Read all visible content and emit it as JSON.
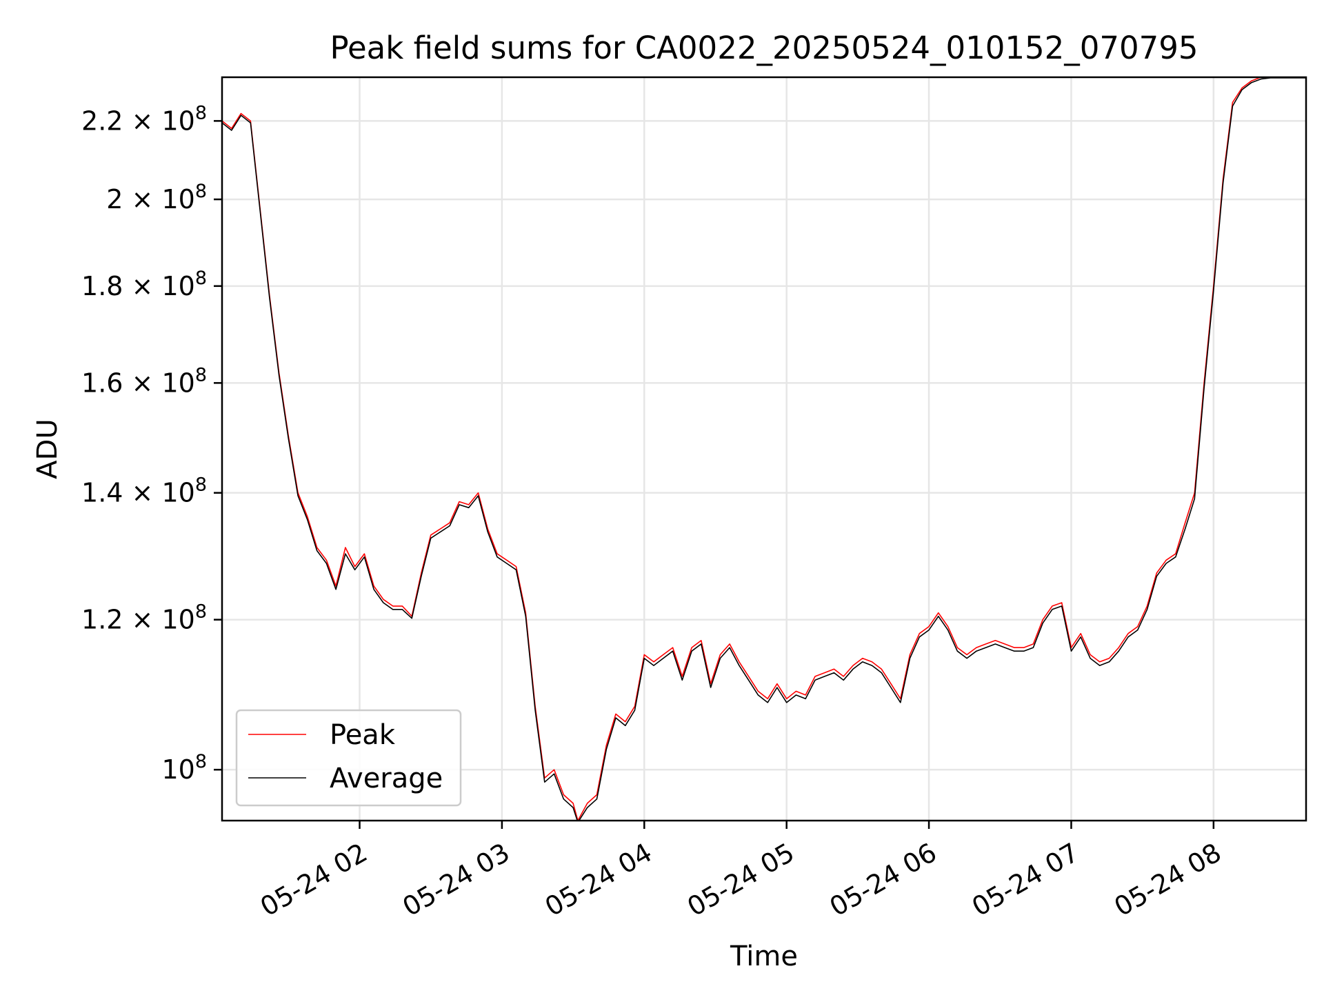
{
  "chart_data": {
    "type": "line",
    "title": "Peak field sums for CA0022_20250524_010152_070795",
    "xlabel": "Time",
    "ylabel": "ADU",
    "y_scale": "log",
    "grid": true,
    "legend_position": "lower-left",
    "xlim": [
      "2025-05-24 01:02",
      "2025-05-24 08:39"
    ],
    "ylim": [
      94000000,
      232000000
    ],
    "x_ticks": [
      {
        "value": "2025-05-24 02:00",
        "label": "05-24 02"
      },
      {
        "value": "2025-05-24 03:00",
        "label": "05-24 03"
      },
      {
        "value": "2025-05-24 04:00",
        "label": "05-24 04"
      },
      {
        "value": "2025-05-24 05:00",
        "label": "05-24 05"
      },
      {
        "value": "2025-05-24 06:00",
        "label": "05-24 06"
      },
      {
        "value": "2025-05-24 07:00",
        "label": "05-24 07"
      },
      {
        "value": "2025-05-24 08:00",
        "label": "05-24 08"
      }
    ],
    "y_ticks": [
      {
        "value": 100000000,
        "mantissa": "",
        "exponent": "8"
      },
      {
        "value": 120000000,
        "mantissa": "1.2",
        "exponent": "8"
      },
      {
        "value": 140000000,
        "mantissa": "1.4",
        "exponent": "8"
      },
      {
        "value": 160000000,
        "mantissa": "1.6",
        "exponent": "8"
      },
      {
        "value": 180000000,
        "mantissa": "1.8",
        "exponent": "8"
      },
      {
        "value": 200000000,
        "mantissa": "2",
        "exponent": "8"
      },
      {
        "value": 220000000,
        "mantissa": "2.2",
        "exponent": "8"
      }
    ],
    "series": [
      {
        "name": "Peak",
        "color": "#ff0000",
        "x": [
          "2025-05-24 01:02",
          "2025-05-24 01:06",
          "2025-05-24 01:10",
          "2025-05-24 01:14",
          "2025-05-24 01:18",
          "2025-05-24 01:22",
          "2025-05-24 01:26",
          "2025-05-24 01:30",
          "2025-05-24 01:34",
          "2025-05-24 01:38",
          "2025-05-24 01:42",
          "2025-05-24 01:46",
          "2025-05-24 01:50",
          "2025-05-24 01:54",
          "2025-05-24 01:58",
          "2025-05-24 02:02",
          "2025-05-24 02:06",
          "2025-05-24 02:10",
          "2025-05-24 02:14",
          "2025-05-24 02:18",
          "2025-05-24 02:22",
          "2025-05-24 02:26",
          "2025-05-24 02:30",
          "2025-05-24 02:34",
          "2025-05-24 02:38",
          "2025-05-24 02:42",
          "2025-05-24 02:46",
          "2025-05-24 02:50",
          "2025-05-24 02:54",
          "2025-05-24 02:58",
          "2025-05-24 03:02",
          "2025-05-24 03:06",
          "2025-05-24 03:10",
          "2025-05-24 03:14",
          "2025-05-24 03:18",
          "2025-05-24 03:22",
          "2025-05-24 03:26",
          "2025-05-24 03:30",
          "2025-05-24 03:32",
          "2025-05-24 03:36",
          "2025-05-24 03:40",
          "2025-05-24 03:44",
          "2025-05-24 03:48",
          "2025-05-24 03:52",
          "2025-05-24 03:56",
          "2025-05-24 04:00",
          "2025-05-24 04:04",
          "2025-05-24 04:08",
          "2025-05-24 04:12",
          "2025-05-24 04:16",
          "2025-05-24 04:20",
          "2025-05-24 04:24",
          "2025-05-24 04:28",
          "2025-05-24 04:32",
          "2025-05-24 04:36",
          "2025-05-24 04:40",
          "2025-05-24 04:44",
          "2025-05-24 04:48",
          "2025-05-24 04:52",
          "2025-05-24 04:56",
          "2025-05-24 05:00",
          "2025-05-24 05:04",
          "2025-05-24 05:08",
          "2025-05-24 05:12",
          "2025-05-24 05:16",
          "2025-05-24 05:20",
          "2025-05-24 05:24",
          "2025-05-24 05:28",
          "2025-05-24 05:32",
          "2025-05-24 05:36",
          "2025-05-24 05:40",
          "2025-05-24 05:44",
          "2025-05-24 05:48",
          "2025-05-24 05:52",
          "2025-05-24 05:56",
          "2025-05-24 06:00",
          "2025-05-24 06:04",
          "2025-05-24 06:08",
          "2025-05-24 06:12",
          "2025-05-24 06:16",
          "2025-05-24 06:20",
          "2025-05-24 06:24",
          "2025-05-24 06:28",
          "2025-05-24 06:32",
          "2025-05-24 06:36",
          "2025-05-24 06:40",
          "2025-05-24 06:44",
          "2025-05-24 06:48",
          "2025-05-24 06:52",
          "2025-05-24 06:56",
          "2025-05-24 07:00",
          "2025-05-24 07:04",
          "2025-05-24 07:08",
          "2025-05-24 07:12",
          "2025-05-24 07:16",
          "2025-05-24 07:20",
          "2025-05-24 07:24",
          "2025-05-24 07:28",
          "2025-05-24 07:32",
          "2025-05-24 07:36",
          "2025-05-24 07:40",
          "2025-05-24 07:44",
          "2025-05-24 07:48",
          "2025-05-24 07:52",
          "2025-05-24 07:56",
          "2025-05-24 08:00",
          "2025-05-24 08:04",
          "2025-05-24 08:08",
          "2025-05-24 08:12",
          "2025-05-24 08:16",
          "2025-05-24 08:20",
          "2025-05-24 08:24",
          "2025-05-24 08:28",
          "2025-05-24 08:32",
          "2025-05-24 08:36",
          "2025-05-24 08:39"
        ],
        "values": [
          220000000,
          218000000,
          222000000,
          220000000,
          198000000,
          178000000,
          162000000,
          150000000,
          140000000,
          136000000,
          131000000,
          129000000,
          125000000,
          131000000,
          128000000,
          130000000,
          125000000,
          123000000,
          122000000,
          122000000,
          120500000,
          127000000,
          133000000,
          134000000,
          135000000,
          138500000,
          138000000,
          140000000,
          134000000,
          130000000,
          129000000,
          128000000,
          121000000,
          108000000,
          99000000,
          100000000,
          97000000,
          96000000,
          94000000,
          96000000,
          97000000,
          103000000,
          107000000,
          106000000,
          108000000,
          115000000,
          114000000,
          115000000,
          116000000,
          112000000,
          116000000,
          117000000,
          111000000,
          115000000,
          116500000,
          114000000,
          112000000,
          110000000,
          109000000,
          111000000,
          109000000,
          110000000,
          109500000,
          112000000,
          112500000,
          113000000,
          112000000,
          113500000,
          114500000,
          114000000,
          113000000,
          111000000,
          109000000,
          115000000,
          118000000,
          119000000,
          121000000,
          119000000,
          116000000,
          115000000,
          116000000,
          116500000,
          117000000,
          116500000,
          116000000,
          116000000,
          116500000,
          120000000,
          122000000,
          122500000,
          116000000,
          118000000,
          115000000,
          114000000,
          114500000,
          116000000,
          118000000,
          119000000,
          122000000,
          127000000,
          129000000,
          130000000,
          135000000,
          140000000,
          160000000,
          180000000,
          205000000,
          225000000,
          229000000,
          231000000,
          232000000,
          232000000,
          232000000,
          232000000,
          232000000,
          232000000
        ]
      },
      {
        "name": "Average",
        "color": "#000000",
        "x": [
          "2025-05-24 01:02",
          "2025-05-24 01:06",
          "2025-05-24 01:10",
          "2025-05-24 01:14",
          "2025-05-24 01:18",
          "2025-05-24 01:22",
          "2025-05-24 01:26",
          "2025-05-24 01:30",
          "2025-05-24 01:34",
          "2025-05-24 01:38",
          "2025-05-24 01:42",
          "2025-05-24 01:46",
          "2025-05-24 01:50",
          "2025-05-24 01:54",
          "2025-05-24 01:58",
          "2025-05-24 02:02",
          "2025-05-24 02:06",
          "2025-05-24 02:10",
          "2025-05-24 02:14",
          "2025-05-24 02:18",
          "2025-05-24 02:22",
          "2025-05-24 02:26",
          "2025-05-24 02:30",
          "2025-05-24 02:34",
          "2025-05-24 02:38",
          "2025-05-24 02:42",
          "2025-05-24 02:46",
          "2025-05-24 02:50",
          "2025-05-24 02:54",
          "2025-05-24 02:58",
          "2025-05-24 03:02",
          "2025-05-24 03:06",
          "2025-05-24 03:10",
          "2025-05-24 03:14",
          "2025-05-24 03:18",
          "2025-05-24 03:22",
          "2025-05-24 03:26",
          "2025-05-24 03:30",
          "2025-05-24 03:32",
          "2025-05-24 03:36",
          "2025-05-24 03:40",
          "2025-05-24 03:44",
          "2025-05-24 03:48",
          "2025-05-24 03:52",
          "2025-05-24 03:56",
          "2025-05-24 04:00",
          "2025-05-24 04:04",
          "2025-05-24 04:08",
          "2025-05-24 04:12",
          "2025-05-24 04:16",
          "2025-05-24 04:20",
          "2025-05-24 04:24",
          "2025-05-24 04:28",
          "2025-05-24 04:32",
          "2025-05-24 04:36",
          "2025-05-24 04:40",
          "2025-05-24 04:44",
          "2025-05-24 04:48",
          "2025-05-24 04:52",
          "2025-05-24 04:56",
          "2025-05-24 05:00",
          "2025-05-24 05:04",
          "2025-05-24 05:08",
          "2025-05-24 05:12",
          "2025-05-24 05:16",
          "2025-05-24 05:20",
          "2025-05-24 05:24",
          "2025-05-24 05:28",
          "2025-05-24 05:32",
          "2025-05-24 05:36",
          "2025-05-24 05:40",
          "2025-05-24 05:44",
          "2025-05-24 05:48",
          "2025-05-24 05:52",
          "2025-05-24 05:56",
          "2025-05-24 06:00",
          "2025-05-24 06:04",
          "2025-05-24 06:08",
          "2025-05-24 06:12",
          "2025-05-24 06:16",
          "2025-05-24 06:20",
          "2025-05-24 06:24",
          "2025-05-24 06:28",
          "2025-05-24 06:32",
          "2025-05-24 06:36",
          "2025-05-24 06:40",
          "2025-05-24 06:44",
          "2025-05-24 06:48",
          "2025-05-24 06:52",
          "2025-05-24 06:56",
          "2025-05-24 07:00",
          "2025-05-24 07:04",
          "2025-05-24 07:08",
          "2025-05-24 07:12",
          "2025-05-24 07:16",
          "2025-05-24 07:20",
          "2025-05-24 07:24",
          "2025-05-24 07:28",
          "2025-05-24 07:32",
          "2025-05-24 07:36",
          "2025-05-24 07:40",
          "2025-05-24 07:44",
          "2025-05-24 07:48",
          "2025-05-24 07:52",
          "2025-05-24 07:56",
          "2025-05-24 08:00",
          "2025-05-24 08:04",
          "2025-05-24 08:08",
          "2025-05-24 08:12",
          "2025-05-24 08:16",
          "2025-05-24 08:20",
          "2025-05-24 08:24",
          "2025-05-24 08:28",
          "2025-05-24 08:32",
          "2025-05-24 08:36",
          "2025-05-24 08:39"
        ],
        "values": [
          219500000,
          217500000,
          221500000,
          219500000,
          197500000,
          177500000,
          161500000,
          149500000,
          139500000,
          135500000,
          130500000,
          128500000,
          124500000,
          130000000,
          127500000,
          129500000,
          124500000,
          122500000,
          121500000,
          121500000,
          120200000,
          126500000,
          132500000,
          133500000,
          134500000,
          138000000,
          137500000,
          139500000,
          133500000,
          129500000,
          128500000,
          127500000,
          120500000,
          107500000,
          98500000,
          99500000,
          96500000,
          95500000,
          93800000,
          95500000,
          96500000,
          102500000,
          106500000,
          105500000,
          107500000,
          114500000,
          113500000,
          114500000,
          115500000,
          111500000,
          115500000,
          116500000,
          110500000,
          114500000,
          116000000,
          113500000,
          111500000,
          109500000,
          108500000,
          110500000,
          108500000,
          109500000,
          109000000,
          111500000,
          112000000,
          112500000,
          111500000,
          113000000,
          114000000,
          113500000,
          112500000,
          110500000,
          108500000,
          114500000,
          117500000,
          118500000,
          120500000,
          118500000,
          115500000,
          114500000,
          115500000,
          116000000,
          116500000,
          116000000,
          115500000,
          115500000,
          116000000,
          119500000,
          121500000,
          122000000,
          115500000,
          117500000,
          114500000,
          113500000,
          114000000,
          115500000,
          117500000,
          118500000,
          121500000,
          126500000,
          128500000,
          129500000,
          134000000,
          139000000,
          159000000,
          179000000,
          204000000,
          224000000,
          228500000,
          230500000,
          231500000,
          231800000,
          231800000,
          231800000,
          231800000,
          231800000
        ]
      }
    ]
  }
}
